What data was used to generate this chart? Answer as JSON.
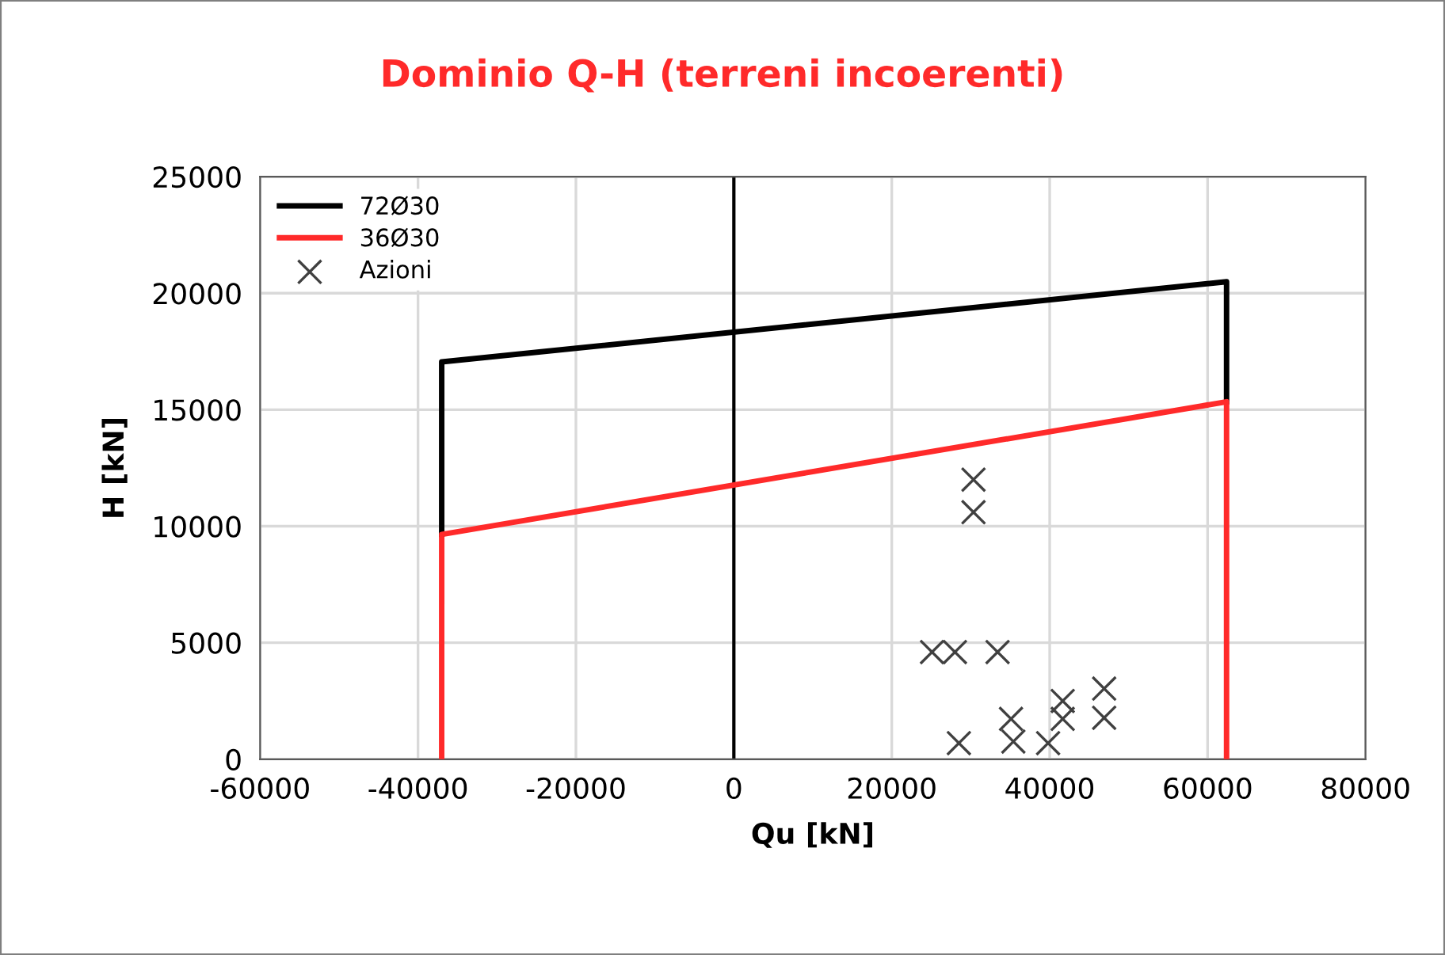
{
  "chart_data": {
    "type": "line",
    "title": "Dominio Q-H (terreni incoerenti)",
    "xlabel": "Qu [kN]",
    "ylabel": "H [kN]",
    "xlim": [
      -60000,
      80000
    ],
    "xticks": [
      -60000,
      -40000,
      -20000,
      0,
      20000,
      40000,
      60000,
      80000
    ],
    "ylim": [
      0,
      25000
    ],
    "yticks": [
      0,
      5000,
      10000,
      15000,
      20000,
      25000
    ],
    "grid": true,
    "legend": "top left",
    "marker": "none",
    "line_style": "solid",
    "ref_lines": [
      {
        "axis": "x",
        "value": 0,
        "color": "#000000"
      }
    ],
    "series": [
      {
        "name": "72Ø30",
        "color": "#000000",
        "x": [
          -37000,
          -37000,
          62400,
          62400
        ],
        "values": [
          9650,
          17050,
          20490,
          15340
        ]
      },
      {
        "name": "36Ø30",
        "color": "#ff2a2a",
        "x": [
          -37000,
          -37000,
          62400,
          62400
        ],
        "values": [
          0,
          9650,
          15340,
          0
        ]
      },
      {
        "name": "Azioni",
        "type": "scatter",
        "color": "#404040",
        "marker": "cross",
        "x": [
          30350,
          30350,
          25100,
          28000,
          33400,
          28500,
          35100,
          35400,
          39800,
          41650,
          41650,
          46900,
          46900
        ],
        "values": [
          12000,
          10600,
          4600,
          4600,
          4600,
          690,
          1730,
          760,
          690,
          2500,
          1730,
          3030,
          1780
        ]
      }
    ]
  }
}
